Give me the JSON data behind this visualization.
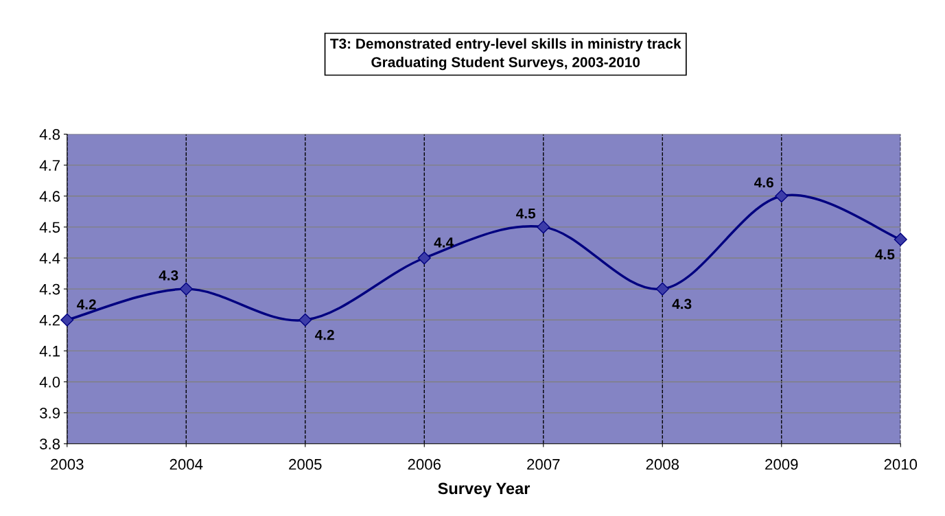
{
  "chart_data": {
    "type": "line",
    "title": "T3: Demonstrated entry-level skills in ministry track\nGraduating Student Surveys, 2003-2010",
    "xlabel": "Survey Year",
    "categories": [
      "2003",
      "2004",
      "2005",
      "2006",
      "2007",
      "2008",
      "2009",
      "2010"
    ],
    "series": [
      {
        "color": "#000080",
        "values": [
          4.2,
          4.3,
          4.2,
          4.4,
          4.5,
          4.3,
          4.6,
          4.46
        ],
        "value_labels": [
          "4.2",
          "4.3",
          "4.2",
          "4.4",
          "4.5",
          "4.3",
          "4.6",
          "4.5"
        ]
      }
    ],
    "ylim": [
      3.8,
      4.8
    ],
    "yticks": [
      {
        "value": 3.8,
        "label": "3.8"
      },
      {
        "value": 3.9,
        "label": "3.9"
      },
      {
        "value": 4.0,
        "label": "4.0"
      },
      {
        "value": 4.1,
        "label": "4.1"
      },
      {
        "value": 4.2,
        "label": "4.2"
      },
      {
        "value": 4.3,
        "label": "4.3"
      },
      {
        "value": 4.4,
        "label": "4.4"
      },
      {
        "value": 4.5,
        "label": "4.5"
      },
      {
        "value": 4.6,
        "label": "4.6"
      },
      {
        "value": 4.7,
        "label": "4.7"
      },
      {
        "value": 4.8,
        "label": "4.8"
      }
    ],
    "grid": true,
    "legend": false,
    "marker": "diamond",
    "line_style": "solid"
  }
}
